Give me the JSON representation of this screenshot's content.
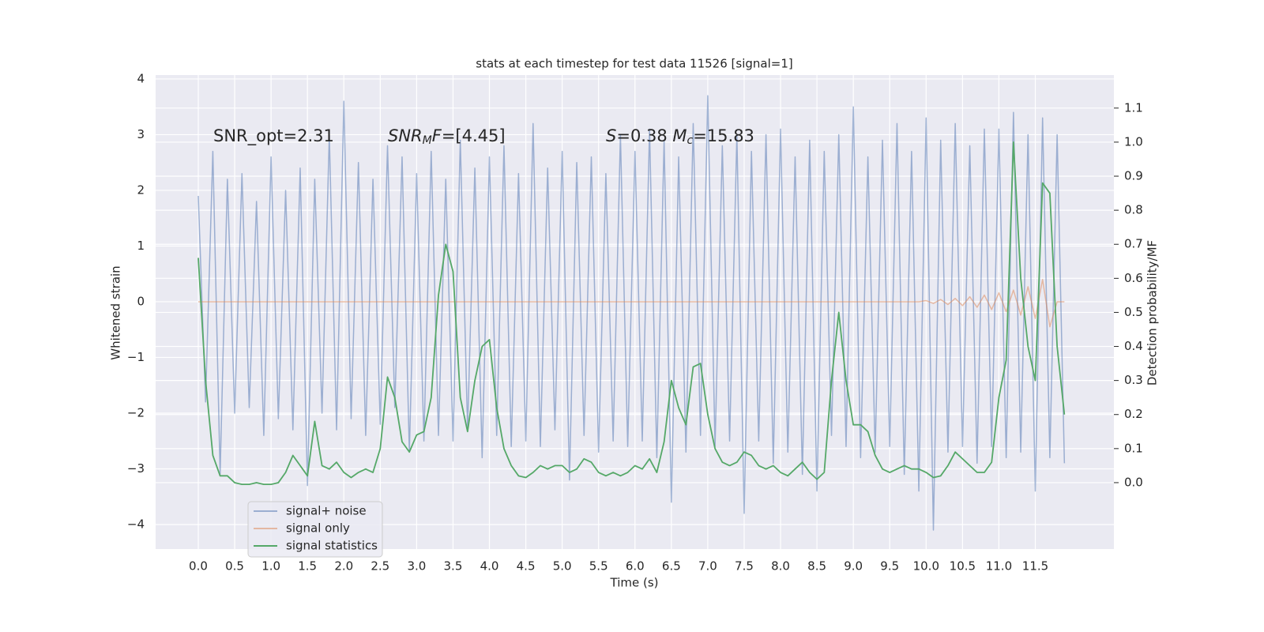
{
  "chart_data": {
    "type": "line",
    "title": "stats at each timestep for test data 11526 [signal=1]",
    "xlabel": "Time (s)",
    "ylabel": "Whitened strain",
    "y2label": "Detection probability/MF",
    "grid": true,
    "legend": "lower left",
    "annotations": [
      {
        "parts": [
          {
            "text": "SNR_opt=2.31"
          }
        ]
      },
      {
        "parts": [
          {
            "text": "SNR",
            "style": "italic"
          },
          {
            "text": "M",
            "style": "sub"
          },
          {
            "text": "F",
            "style": "italic"
          },
          {
            "text": "=[4.45]"
          }
        ]
      },
      {
        "parts": [
          {
            "text": "S",
            "style": "italic"
          },
          {
            "text": "=0.38   "
          },
          {
            "text": "M",
            "style": "italic"
          },
          {
            "text": "c",
            "style": "sub"
          },
          {
            "text": "=15.83"
          }
        ]
      }
    ],
    "xlim": [
      -0.586,
      12.58
    ],
    "ylim": [
      -4.44,
      4.07
    ],
    "y2lim": [
      -0.195,
      1.197
    ],
    "xticks": [
      {
        "value": 0,
        "label": "0.0"
      },
      {
        "value": 0.5,
        "label": "0.5"
      },
      {
        "value": 1,
        "label": "1.0"
      },
      {
        "value": 1.5,
        "label": "1.5"
      },
      {
        "value": 2,
        "label": "2.0"
      },
      {
        "value": 2.5,
        "label": "2.5"
      },
      {
        "value": 3,
        "label": "3.0"
      },
      {
        "value": 3.5,
        "label": "3.5"
      },
      {
        "value": 4,
        "label": "4.0"
      },
      {
        "value": 4.5,
        "label": "4.5"
      },
      {
        "value": 5,
        "label": "5.0"
      },
      {
        "value": 5.5,
        "label": "5.5"
      },
      {
        "value": 6,
        "label": "6.0"
      },
      {
        "value": 6.5,
        "label": "6.5"
      },
      {
        "value": 7,
        "label": "7.0"
      },
      {
        "value": 7.5,
        "label": "7.5"
      },
      {
        "value": 8,
        "label": "8.0"
      },
      {
        "value": 8.5,
        "label": "8.5"
      },
      {
        "value": 9,
        "label": "9.0"
      },
      {
        "value": 9.5,
        "label": "9.5"
      },
      {
        "value": 10,
        "label": "10.0"
      },
      {
        "value": 10.5,
        "label": "10.5"
      },
      {
        "value": 11,
        "label": "11.0"
      },
      {
        "value": 11.5,
        "label": "11.5"
      }
    ],
    "yticks": [
      {
        "value": -4,
        "label": "−4"
      },
      {
        "value": -3,
        "label": "−3"
      },
      {
        "value": -2,
        "label": "−2"
      },
      {
        "value": -1,
        "label": "−1"
      },
      0,
      1,
      2,
      3,
      4
    ],
    "y2ticks": [
      {
        "value": 0,
        "label": "0.0"
      },
      {
        "value": 0.1,
        "label": "0.1"
      },
      {
        "value": 0.2,
        "label": "0.2"
      },
      {
        "value": 0.3,
        "label": "0.3"
      },
      {
        "value": 0.4,
        "label": "0.4"
      },
      {
        "value": 0.5,
        "label": "0.5"
      },
      {
        "value": 0.6,
        "label": "0.6"
      },
      {
        "value": 0.7,
        "label": "0.7"
      },
      {
        "value": 0.8,
        "label": "0.8"
      },
      {
        "value": 0.9,
        "label": "0.9"
      },
      {
        "value": 1,
        "label": "1.0"
      },
      {
        "value": 1.1,
        "label": "1.1"
      }
    ],
    "x": [
      0,
      0.1,
      0.2,
      0.3,
      0.4,
      0.5,
      0.6,
      0.7,
      0.8,
      0.9,
      1,
      1.1,
      1.2,
      1.3,
      1.4,
      1.5,
      1.6,
      1.7,
      1.8,
      1.9,
      2,
      2.1,
      2.2,
      2.3,
      2.4,
      2.5,
      2.6,
      2.7,
      2.8,
      2.9,
      3,
      3.1,
      3.2,
      3.3,
      3.4,
      3.5,
      3.6,
      3.7,
      3.8,
      3.9,
      4,
      4.1,
      4.2,
      4.3,
      4.4,
      4.5,
      4.6,
      4.7,
      4.8,
      4.9,
      5,
      5.1,
      5.2,
      5.3,
      5.4,
      5.5,
      5.6,
      5.7,
      5.8,
      5.9,
      6,
      6.1,
      6.2,
      6.3,
      6.4,
      6.5,
      6.6,
      6.7,
      6.8,
      6.9,
      7,
      7.1,
      7.2,
      7.3,
      7.4,
      7.5,
      7.6,
      7.7,
      7.8,
      7.9,
      8,
      8.1,
      8.2,
      8.3,
      8.4,
      8.5,
      8.6,
      8.7,
      8.8,
      8.9,
      9,
      9.1,
      9.2,
      9.3,
      9.4,
      9.5,
      9.6,
      9.7,
      9.8,
      9.9,
      10,
      10.1,
      10.2,
      10.3,
      10.4,
      10.5,
      10.6,
      10.7,
      10.8,
      10.9,
      11,
      11.1,
      11.2,
      11.3,
      11.4,
      11.5,
      11.6,
      11.7,
      11.8,
      11.9
    ],
    "series": [
      {
        "name": "signal+ noise",
        "color": "#4c72b0",
        "opacity": 0.5,
        "values": [
          1.9,
          -1.8,
          2.7,
          -3.1,
          2.2,
          -2.0,
          2.3,
          -1.9,
          1.8,
          -2.4,
          2.6,
          -2.1,
          2.0,
          -2.3,
          2.4,
          -3.3,
          2.2,
          -2.0,
          3.0,
          -2.3,
          3.6,
          -2.1,
          2.5,
          -2.4,
          2.2,
          -2.2,
          2.8,
          -1.9,
          2.6,
          -2.7,
          2.3,
          -2.5,
          2.7,
          -2.4,
          2.2,
          -2.5,
          2.9,
          -2.3,
          2.4,
          -2.8,
          2.6,
          -2.4,
          2.8,
          -2.6,
          2.3,
          -2.5,
          3.2,
          -2.6,
          2.4,
          -2.3,
          2.7,
          -3.2,
          2.5,
          -2.4,
          2.6,
          -2.7,
          2.3,
          -2.5,
          3.0,
          -2.6,
          2.7,
          -2.5,
          3.1,
          -2.8,
          2.9,
          -3.6,
          2.6,
          -2.7,
          3.2,
          -2.4,
          3.7,
          -2.6,
          2.8,
          -2.5,
          3.0,
          -3.8,
          2.7,
          -2.5,
          3.0,
          -2.9,
          3.1,
          -2.7,
          2.6,
          -3.1,
          2.9,
          -3.4,
          2.7,
          -2.4,
          3.0,
          -2.6,
          3.5,
          -2.8,
          2.6,
          -2.7,
          2.9,
          -2.6,
          3.2,
          -3.1,
          2.7,
          -3.4,
          3.3,
          -4.1,
          2.9,
          -2.7,
          3.2,
          -2.6,
          2.8,
          -2.9,
          3.1,
          -2.6,
          3.1,
          -2.8,
          3.4,
          -2.7,
          3.0,
          -3.4,
          3.3,
          -2.8,
          3.0,
          -2.9
        ]
      },
      {
        "name": "signal only",
        "color": "#dd8452",
        "opacity": 0.5,
        "values": [
          0,
          0,
          0,
          0,
          0,
          0,
          0,
          0,
          0,
          0,
          0,
          0,
          0,
          0,
          0,
          0,
          0,
          0,
          0,
          0,
          0,
          0,
          0,
          0,
          0,
          0,
          0,
          0,
          0,
          0,
          0,
          0,
          0,
          0,
          0,
          0,
          0,
          0,
          0,
          0,
          0,
          0,
          0,
          0,
          0,
          0,
          0,
          0,
          0,
          0,
          0,
          0,
          0,
          0,
          0,
          0,
          0,
          0,
          0,
          0,
          0,
          0,
          0,
          0,
          0,
          0,
          0,
          0,
          0,
          0,
          0,
          0,
          0,
          0,
          0,
          0,
          0,
          0,
          0,
          0,
          0,
          0,
          0,
          0,
          0,
          0,
          0,
          0,
          0,
          0,
          0,
          0,
          0,
          0,
          0,
          0,
          0,
          0,
          0,
          0,
          0.02,
          -0.03,
          0.04,
          -0.05,
          0.06,
          -0.07,
          0.09,
          -0.1,
          0.12,
          -0.14,
          0.16,
          -0.18,
          0.21,
          -0.24,
          0.27,
          -0.3,
          0.4,
          -0.45,
          0,
          0
        ]
      },
      {
        "name": "signal statistics",
        "color": "#55a868",
        "opacity": 1,
        "axis": "y2",
        "values": [
          0.66,
          0.3,
          0.08,
          0.02,
          0.02,
          0.0,
          -0.005,
          -0.005,
          0.0,
          -0.005,
          -0.005,
          0.0,
          0.03,
          0.08,
          0.05,
          0.02,
          0.18,
          0.05,
          0.04,
          0.06,
          0.03,
          0.015,
          0.03,
          0.04,
          0.03,
          0.1,
          0.31,
          0.25,
          0.12,
          0.09,
          0.14,
          0.15,
          0.25,
          0.55,
          0.7,
          0.62,
          0.25,
          0.15,
          0.3,
          0.4,
          0.42,
          0.22,
          0.1,
          0.05,
          0.02,
          0.015,
          0.03,
          0.05,
          0.04,
          0.05,
          0.05,
          0.03,
          0.04,
          0.07,
          0.06,
          0.03,
          0.02,
          0.03,
          0.02,
          0.03,
          0.05,
          0.04,
          0.07,
          0.03,
          0.12,
          0.3,
          0.22,
          0.17,
          0.34,
          0.35,
          0.2,
          0.1,
          0.06,
          0.05,
          0.06,
          0.09,
          0.08,
          0.05,
          0.04,
          0.05,
          0.03,
          0.02,
          0.04,
          0.06,
          0.03,
          0.01,
          0.03,
          0.3,
          0.5,
          0.3,
          0.17,
          0.17,
          0.15,
          0.08,
          0.04,
          0.03,
          0.04,
          0.05,
          0.04,
          0.04,
          0.03,
          0.015,
          0.02,
          0.05,
          0.09,
          0.07,
          0.05,
          0.03,
          0.03,
          0.06,
          0.25,
          0.36,
          1.0,
          0.6,
          0.4,
          0.3,
          0.88,
          0.85,
          0.4,
          0.2
        ]
      }
    ]
  }
}
